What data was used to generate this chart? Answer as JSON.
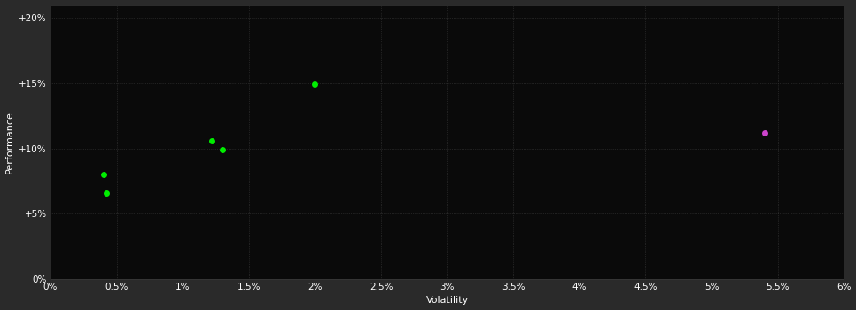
{
  "background_color": "#2a2a2a",
  "plot_bg_color": "#0a0a0a",
  "grid_color": "#3a3a3a",
  "text_color": "#ffffff",
  "xlabel": "Volatility",
  "ylabel": "Performance",
  "xlim": [
    0.0,
    0.06
  ],
  "ylim": [
    0.0,
    0.21
  ],
  "xticks": [
    0.0,
    0.005,
    0.01,
    0.015,
    0.02,
    0.025,
    0.03,
    0.035,
    0.04,
    0.045,
    0.05,
    0.055,
    0.06
  ],
  "yticks": [
    0.0,
    0.05,
    0.1,
    0.15,
    0.2
  ],
  "green_points": [
    [
      0.004,
      0.08
    ],
    [
      0.0042,
      0.066
    ],
    [
      0.0122,
      0.106
    ],
    [
      0.013,
      0.099
    ],
    [
      0.02,
      0.149
    ]
  ],
  "magenta_points": [
    [
      0.054,
      0.112
    ]
  ],
  "green_color": "#00ee00",
  "magenta_color": "#cc44cc",
  "marker_size": 5,
  "grid_linewidth": 0.5,
  "xlabel_fontsize": 8,
  "ylabel_fontsize": 8,
  "tick_fontsize": 7.5
}
